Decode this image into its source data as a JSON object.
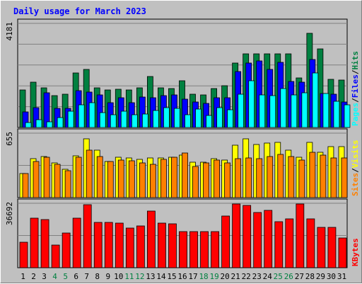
{
  "chart_data": {
    "type": "bar",
    "title": "Daily usage for March 2023",
    "categories": [
      "1",
      "2",
      "3",
      "4",
      "5",
      "6",
      "7",
      "8",
      "9",
      "10",
      "11",
      "12",
      "13",
      "14",
      "15",
      "16",
      "17",
      "18",
      "19",
      "20",
      "21",
      "22",
      "23",
      "24",
      "25",
      "26",
      "27",
      "28",
      "29",
      "30",
      "31"
    ],
    "weekend_days": [
      4,
      5,
      11,
      12,
      18,
      19,
      25,
      26
    ],
    "panels": [
      {
        "id": "hits-files-pages",
        "ymax": 4181,
        "ymax_label": "4181",
        "axis_labels": [
          "Pages",
          "/",
          "Files",
          "/",
          "Hits"
        ],
        "series": [
          {
            "name": "Hits",
            "color": "#008040",
            "values": [
              1520,
              1830,
              1600,
              1280,
              1350,
              2200,
              2320,
              1600,
              1500,
              1550,
              1520,
              1600,
              2050,
              1580,
              1560,
              1890,
              1350,
              1320,
              1560,
              1680,
              2580,
              2950,
              2950,
              2950,
              2970,
              2950,
              1990,
              3790,
              3160,
              1940,
              1910
            ]
          },
          {
            "name": "Files",
            "color": "#0000ff",
            "values": [
              630,
              800,
              1400,
              760,
              780,
              1480,
              1420,
              1320,
              1000,
              1200,
              990,
              1220,
              1200,
              1280,
              1310,
              1140,
              1020,
              980,
              1200,
              1200,
              2240,
              2600,
              2670,
              2320,
              2630,
              1840,
              1820,
              2740,
              1360,
              1340,
              1020
            ]
          },
          {
            "name": "Pages",
            "color": "#00ffff",
            "values": [
              200,
              320,
              230,
              410,
              650,
              920,
              1000,
              600,
              520,
              660,
              520,
              540,
              670,
              800,
              770,
              510,
              740,
              470,
              810,
              710,
              1350,
              1880,
              1310,
              1290,
              1570,
              1320,
              1390,
              2200,
              1370,
              1060,
              910
            ]
          }
        ]
      },
      {
        "id": "visits-sites",
        "ymax": 655,
        "ymax_label": "655",
        "axis_labels": [
          "Sites",
          "/",
          "Visits"
        ],
        "series": [
          {
            "name": "Visits",
            "color": "#ffff00",
            "values": [
              247,
              395,
              415,
              350,
              290,
              425,
              600,
              483,
              370,
              410,
              400,
              390,
              400,
              400,
              410,
              430,
              360,
              360,
              395,
              380,
              530,
              600,
              540,
              555,
              560,
              480,
              410,
              560,
              460,
              520,
              520
            ]
          },
          {
            "name": "Sites",
            "color": "#ff8000",
            "values": [
              242,
              370,
              410,
              340,
              270,
              410,
              480,
              418,
              370,
              380,
              375,
              350,
              335,
              390,
              410,
              450,
              320,
              350,
              382,
              350,
              395,
              400,
              395,
              420,
              440,
              420,
              385,
              460,
              435,
              405,
              400
            ]
          }
        ]
      },
      {
        "id": "kbytes",
        "ymax": 36692,
        "ymax_label": "36692",
        "axis_labels": [
          "KBytes"
        ],
        "series": [
          {
            "name": "KBytes",
            "color": "#ff0000",
            "values": [
              14400,
              28300,
              27300,
              13100,
              19800,
              28100,
              36000,
              25900,
              25700,
              25500,
              22400,
              23900,
              32200,
              25400,
              24800,
              20400,
              20500,
              20700,
              20600,
              29500,
              36400,
              35400,
              31600,
              32800,
              26300,
              27800,
              36200,
              27900,
              23000,
              23000,
              17000
            ]
          }
        ]
      }
    ]
  }
}
